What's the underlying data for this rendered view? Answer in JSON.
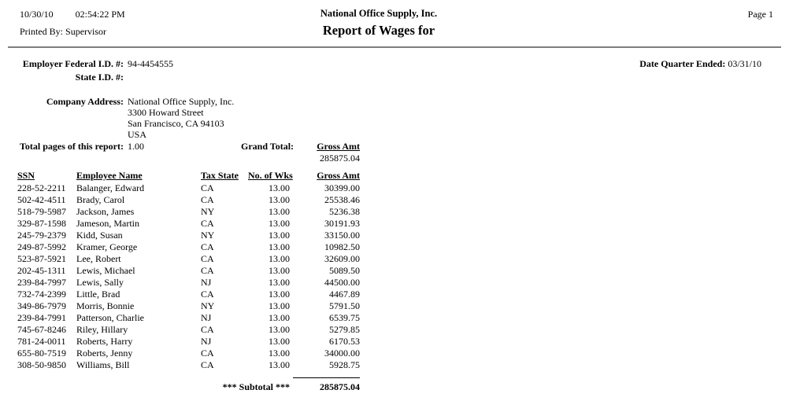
{
  "header": {
    "print_date": "10/30/10",
    "print_time": "02:54:22 PM",
    "printed_by_label": "Printed By:",
    "printed_by": "Supervisor",
    "company_name": "National Office Supply, Inc.",
    "report_title": "Report of Wages for",
    "page_label": "Page 1"
  },
  "info": {
    "federal_id_label": "Employer Federal I.D. #:",
    "federal_id": "94-4454555",
    "state_id_label": "State I.D. #:",
    "state_id": "",
    "quarter_ended_label": "Date Quarter Ended:",
    "quarter_ended": "03/31/10",
    "company_address_label": "Company Address:",
    "company_address_lines": [
      "National Office Supply, Inc.",
      "3300 Howard Street",
      "San Francisco, CA 94103",
      "USA"
    ],
    "total_pages_label": "Total pages of this report:",
    "total_pages": "1.00",
    "grand_total_label": "Grand Total:",
    "grand_total_column": "Gross Amt",
    "grand_total_value": "285875.04"
  },
  "table": {
    "columns": [
      "SSN",
      "Employee Name",
      "Tax State",
      "No. of Wks",
      "Gross Amt"
    ],
    "rows": [
      [
        "228-52-2211",
        "Balanger, Edward",
        "CA",
        "13.00",
        "30399.00"
      ],
      [
        "502-42-4511",
        "Brady, Carol",
        "CA",
        "13.00",
        "25538.46"
      ],
      [
        "518-79-5987",
        "Jackson, James",
        "NY",
        "13.00",
        "5236.38"
      ],
      [
        "329-87-1598",
        "Jameson, Martin",
        "CA",
        "13.00",
        "30191.93"
      ],
      [
        "245-79-2379",
        "Kidd, Susan",
        "NY",
        "13.00",
        "33150.00"
      ],
      [
        "249-87-5992",
        "Kramer, George",
        "CA",
        "13.00",
        "10982.50"
      ],
      [
        "523-87-5921",
        "Lee, Robert",
        "CA",
        "13.00",
        "32609.00"
      ],
      [
        "202-45-1311",
        "Lewis, Michael",
        "CA",
        "13.00",
        "5089.50"
      ],
      [
        "239-84-7997",
        "Lewis, Sally",
        "NJ",
        "13.00",
        "44500.00"
      ],
      [
        "732-74-2399",
        "Little, Brad",
        "CA",
        "13.00",
        "4467.89"
      ],
      [
        "349-86-7979",
        "Morris, Bonnie",
        "NY",
        "13.00",
        "5791.50"
      ],
      [
        "239-84-7991",
        "Patterson, Charlie",
        "NJ",
        "13.00",
        "6539.75"
      ],
      [
        "745-67-8246",
        "Riley, Hillary",
        "CA",
        "13.00",
        "5279.85"
      ],
      [
        "781-24-0011",
        "Roberts, Harry",
        "NJ",
        "13.00",
        "6170.53"
      ],
      [
        "655-80-7519",
        "Roberts, Jenny",
        "CA",
        "13.00",
        "34000.00"
      ],
      [
        "308-50-9850",
        "Williams, Bill",
        "CA",
        "13.00",
        "5928.75"
      ]
    ],
    "subtotal_label": "*** Subtotal ***",
    "subtotal_value": "285875.04"
  },
  "colors": {
    "text": "#000000",
    "rule": "#7d7d7d",
    "background": "#ffffff"
  }
}
